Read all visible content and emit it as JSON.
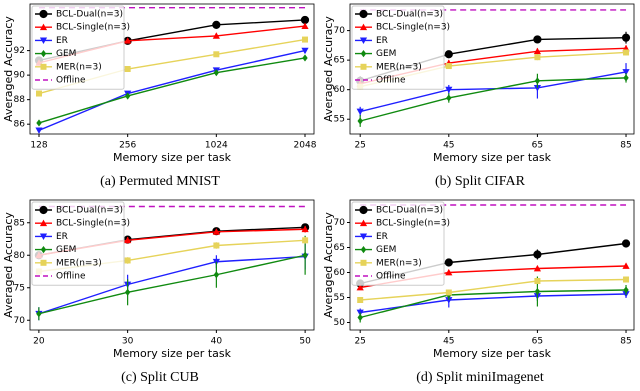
{
  "chart_data": [
    {
      "type": "line",
      "caption": "(a) Permuted MNIST",
      "xlabel": "Memory size per task",
      "ylabel": "Averaged Accuracy",
      "categories": [
        "128",
        "256",
        "1024",
        "2048"
      ],
      "ylim": [
        85.2,
        95.8
      ],
      "yticks": [
        86,
        88,
        90,
        92
      ],
      "series": [
        {
          "name": "BCL-Dual(n=3)",
          "color": "#000000",
          "marker": "circle",
          "values": [
            91.2,
            92.8,
            94.1,
            94.5
          ],
          "errors": [
            0.2,
            0.2,
            0.2,
            0.2
          ]
        },
        {
          "name": "BCL-Single(n=3)",
          "color": "#ff0000",
          "marker": "triangle-up",
          "values": [
            91.0,
            92.8,
            93.2,
            94.0
          ],
          "errors": [
            0.2,
            0.2,
            0.2,
            0.2
          ]
        },
        {
          "name": "ER",
          "color": "#1f1fff",
          "marker": "triangle-down",
          "values": [
            85.5,
            88.5,
            90.4,
            92.0
          ],
          "errors": [
            0.2,
            0.2,
            0.2,
            0.2
          ]
        },
        {
          "name": "GEM",
          "color": "#108a10",
          "marker": "diamond",
          "values": [
            86.1,
            88.3,
            90.2,
            91.4
          ],
          "errors": [
            0.2,
            0.2,
            0.2,
            0.2
          ]
        },
        {
          "name": "MER(n=3)",
          "color": "#e6d35a",
          "marker": "square",
          "values": [
            88.5,
            90.5,
            91.7,
            92.9
          ],
          "errors": [
            0.2,
            0.2,
            0.2,
            0.2
          ]
        },
        {
          "name": "Offline",
          "color": "#c010c0",
          "marker": "none",
          "linestyle": "dashed",
          "values": [
            95.5,
            95.5,
            95.5,
            95.5
          ]
        }
      ]
    },
    {
      "type": "line",
      "caption": "(b) Split CIFAR",
      "xlabel": "Memory size per task",
      "ylabel": "Averaged Accuracy",
      "x": [
        25,
        45,
        65,
        85
      ],
      "xlim": [
        22.7,
        86.8
      ],
      "xticks": [
        25,
        45,
        65,
        85
      ],
      "ylim": [
        52.5,
        74.5
      ],
      "yticks": [
        55,
        60,
        65,
        70
      ],
      "series": [
        {
          "name": "BCL-Dual(n=3)",
          "color": "#000000",
          "marker": "circle",
          "values": [
            61.5,
            66.0,
            68.5,
            68.8
          ],
          "errors": [
            0.8,
            0.5,
            0.5,
            1.0
          ]
        },
        {
          "name": "BCL-Single(n=3)",
          "color": "#ff0000",
          "marker": "triangle-up",
          "values": [
            61.0,
            64.5,
            66.5,
            67.0
          ],
          "errors": [
            0.8,
            0.5,
            0.5,
            0.5
          ]
        },
        {
          "name": "ER",
          "color": "#1f1fff",
          "marker": "triangle-down",
          "values": [
            56.3,
            60.0,
            60.3,
            63.0
          ],
          "errors": [
            0.8,
            0.8,
            1.8,
            1.5
          ]
        },
        {
          "name": "GEM",
          "color": "#108a10",
          "marker": "diamond",
          "values": [
            54.7,
            58.6,
            61.5,
            62.0
          ],
          "errors": [
            1.0,
            0.8,
            1.2,
            0.8
          ]
        },
        {
          "name": "MER(n=3)",
          "color": "#e6d35a",
          "marker": "square",
          "values": [
            60.5,
            64.0,
            65.5,
            66.3
          ],
          "errors": [
            0.5,
            0.5,
            0.5,
            0.5
          ]
        },
        {
          "name": "Offline",
          "color": "#c010c0",
          "marker": "none",
          "linestyle": "dashed",
          "values": [
            73.5,
            73.5,
            73.5,
            73.5
          ]
        }
      ]
    },
    {
      "type": "line",
      "caption": "(c) Split CUB",
      "xlabel": "Memory size per task",
      "ylabel": "Averaged Accuracy",
      "x": [
        20,
        30,
        40,
        50
      ],
      "xlim": [
        19,
        51
      ],
      "xticks": [
        20,
        30,
        40,
        50
      ],
      "ylim": [
        68.5,
        88.5
      ],
      "yticks": [
        70,
        75,
        80,
        85
      ],
      "series": [
        {
          "name": "BCL-Dual(n=3)",
          "color": "#000000",
          "marker": "circle",
          "values": [
            80.0,
            82.4,
            83.7,
            84.3
          ],
          "errors": [
            0.5,
            0.5,
            0.4,
            0.5
          ]
        },
        {
          "name": "BCL-Single(n=3)",
          "color": "#ff0000",
          "marker": "triangle-up",
          "values": [
            80.0,
            82.3,
            83.6,
            84.0
          ],
          "errors": [
            0.5,
            0.5,
            0.4,
            0.5
          ]
        },
        {
          "name": "ER",
          "color": "#1f1fff",
          "marker": "triangle-down",
          "values": [
            71.0,
            75.5,
            79.0,
            79.8
          ],
          "errors": [
            1.0,
            1.5,
            1.0,
            2.0
          ]
        },
        {
          "name": "GEM",
          "color": "#108a10",
          "marker": "diamond",
          "values": [
            71.0,
            74.3,
            77.0,
            80.0
          ],
          "errors": [
            1.0,
            2.0,
            2.0,
            3.0
          ]
        },
        {
          "name": "MER(n=3)",
          "color": "#e6d35a",
          "marker": "square",
          "values": [
            77.5,
            79.2,
            81.5,
            82.3
          ],
          "errors": [
            0.5,
            0.5,
            0.5,
            0.5
          ]
        },
        {
          "name": "Offline",
          "color": "#c010c0",
          "marker": "none",
          "linestyle": "dashed",
          "values": [
            87.5,
            87.5,
            87.5,
            87.5
          ]
        }
      ]
    },
    {
      "type": "line",
      "caption": "(d) Split miniImagenet",
      "xlabel": "Memory size per task",
      "ylabel": "Averaged Accuracy",
      "x": [
        25,
        45,
        65,
        85
      ],
      "xlim": [
        22.7,
        86.8
      ],
      "xticks": [
        25,
        45,
        65,
        85
      ],
      "ylim": [
        48.5,
        74.5
      ],
      "yticks": [
        50,
        55,
        60,
        65,
        70
      ],
      "series": [
        {
          "name": "BCL-Dual(n=3)",
          "color": "#000000",
          "marker": "circle",
          "values": [
            57.8,
            62.0,
            63.6,
            65.8
          ],
          "errors": [
            0.8,
            0.5,
            1.0,
            0.5
          ]
        },
        {
          "name": "BCL-Single(n=3)",
          "color": "#ff0000",
          "marker": "triangle-up",
          "values": [
            57.0,
            60.0,
            60.8,
            61.3
          ],
          "errors": [
            0.5,
            0.5,
            0.5,
            0.5
          ]
        },
        {
          "name": "ER",
          "color": "#1f1fff",
          "marker": "triangle-down",
          "values": [
            52.0,
            54.5,
            55.3,
            55.7
          ],
          "errors": [
            0.8,
            1.5,
            1.0,
            0.8
          ]
        },
        {
          "name": "GEM",
          "color": "#108a10",
          "marker": "diamond",
          "values": [
            51.0,
            55.5,
            56.2,
            56.5
          ],
          "errors": [
            1.0,
            1.0,
            3.0,
            1.0
          ]
        },
        {
          "name": "MER(n=3)",
          "color": "#e6d35a",
          "marker": "square",
          "values": [
            54.5,
            56.0,
            58.3,
            58.6
          ],
          "errors": [
            0.5,
            0.5,
            0.5,
            0.5
          ]
        },
        {
          "name": "Offline",
          "color": "#c010c0",
          "marker": "none",
          "linestyle": "dashed",
          "values": [
            73.5,
            73.5,
            73.5,
            73.5
          ]
        }
      ]
    }
  ]
}
